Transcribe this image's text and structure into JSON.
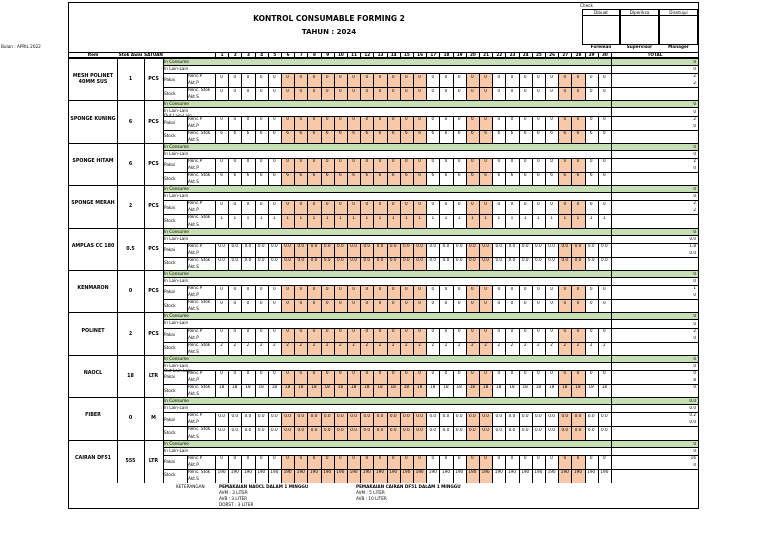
{
  "header": {
    "title": "KONTROL CONSUMABLE FORMING 2",
    "year": "TAHUN : 2024",
    "cc": "Check",
    "bulan": "Bulan : APRIL 2022",
    "approval": [
      "Dibuat",
      "Diperiksa",
      "Disetujui"
    ],
    "signers": [
      "Foreman",
      "Supervisor",
      "Manager"
    ]
  },
  "columns": {
    "item": "Item",
    "stok_awal": "Stok Awal",
    "satuan": "SATUAN",
    "days": [
      "1",
      "2",
      "3",
      "4",
      "5",
      "6",
      "7",
      "8",
      "9",
      "10",
      "11",
      "12",
      "13",
      "14",
      "15",
      "16",
      "17",
      "18",
      "19",
      "20",
      "21",
      "22",
      "23",
      "24",
      "25",
      "26",
      "27",
      "28",
      "29",
      "30"
    ],
    "total": "TOTAL"
  },
  "labels": {
    "in_consume": "In Consume",
    "in_lain": "In Lain-Lain",
    "out_lain": "Out Lain-Lain",
    "pakai": "Pakai",
    "stock": "Stock",
    "renc_p": "Renc.P",
    "akt_p": "Akt.P",
    "renc_stok": "Renc. Stok",
    "akt_s": "Akt.S"
  },
  "colors": {
    "green": "#c6dfb4",
    "orange": "#f7c9a8"
  },
  "orange_days": [
    6,
    7,
    8,
    9,
    10,
    11,
    12,
    13,
    14,
    15,
    16,
    20,
    21,
    27,
    28
  ],
  "items": [
    {
      "name": "MESH POLINET 40MM SUS",
      "stok": "1",
      "unit": "PCS",
      "out": false,
      "pakai": "0",
      "stock": "0",
      "total": [
        "0",
        "0",
        "2",
        "2"
      ]
    },
    {
      "name": "SPONGE KUNING",
      "stok": "6",
      "unit": "PCS",
      "out": true,
      "pakai": "0",
      "stock": "6",
      "total": [
        "0",
        "0",
        "2",
        "0"
      ]
    },
    {
      "name": "SPONGE HITAM",
      "stok": "6",
      "unit": "PCS",
      "out": false,
      "pakai": "0",
      "stock": "6",
      "total": [
        "0",
        "0",
        "2",
        "0"
      ]
    },
    {
      "name": "SPONGE MERAH",
      "stok": "2",
      "unit": "PCS",
      "out": false,
      "pakai": "0",
      "stock": "1",
      "total": [
        "0",
        "0",
        "2",
        "2"
      ]
    },
    {
      "name": "AMPLAS CC 180",
      "stok": "0.5",
      "unit": "PCS",
      "out": false,
      "pakai": "0.0",
      "stock": "0.0",
      "total": [
        "0",
        "0.0",
        "1.8",
        "0.0"
      ]
    },
    {
      "name": "KENMARON",
      "stok": "0",
      "unit": "PCS",
      "out": false,
      "pakai": "0",
      "stock": "0",
      "total": [
        "0",
        "0",
        "1",
        "0"
      ]
    },
    {
      "name": "POLINET",
      "stok": "2",
      "unit": "PCS",
      "out": false,
      "pakai": "0",
      "stock": "2",
      "total": [
        "0",
        "0",
        "2",
        "0"
      ]
    },
    {
      "name": "NAOCL",
      "stok": "18",
      "unit": "LTR",
      "out": true,
      "pakai": "0",
      "stock": "18",
      "total": [
        "0",
        "0",
        "0",
        "8",
        "0"
      ]
    },
    {
      "name": "FIBER",
      "stok": "0",
      "unit": "M",
      "out": false,
      "pakai": "0.0",
      "stock": "0.0",
      "total": [
        "0.0",
        "0.0",
        "0.2",
        "0.0"
      ]
    },
    {
      "name": "CAIRAN DF51",
      "stok": "555",
      "unit": "LTR",
      "out": false,
      "pakai": "0",
      "stock": "190",
      "total": [
        "0",
        "0",
        "16",
        "0"
      ]
    }
  ],
  "footer": {
    "keterangan": "KETERANGAN",
    "naocl_title": "PEMAKAIAN NAOCL DALAM 1 MINGGU",
    "naocl_lines": [
      "AVM    : 3 LITER",
      "AVB    : 3 LITER",
      "DORST : 3 LITER"
    ],
    "df51_title": "PEMAKAIAN CAIRAN DF51 DALAM 1 MINGGU",
    "df51_lines": [
      "AVM    : 5 LITER",
      "AVB    : 10 LITER"
    ]
  }
}
